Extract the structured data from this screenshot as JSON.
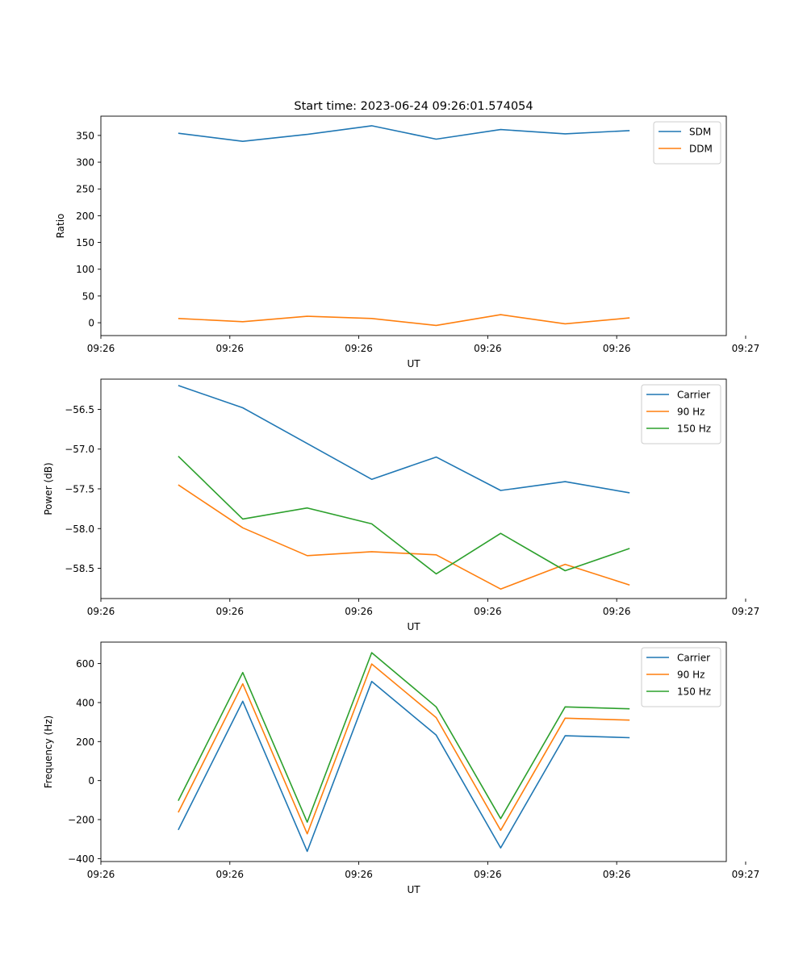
{
  "figure": {
    "title": "Start time: 2023-06-24 09:26:01.574054"
  },
  "chart_data": [
    {
      "type": "line",
      "ylabel": "Ratio",
      "xlabel": "UT",
      "x": [
        0.6,
        1.1,
        1.6,
        2.1,
        2.6,
        3.1,
        3.6,
        4.1
      ],
      "xlim": [
        0.0,
        4.85
      ],
      "xticks": [
        0.0,
        1.0,
        2.0,
        3.0,
        4.0,
        5.0
      ],
      "xtick_labels": [
        "09:26",
        "09:26",
        "09:26",
        "09:26",
        "09:26",
        "09:27"
      ],
      "ylim": [
        -24,
        386
      ],
      "yticks": [
        0,
        50,
        100,
        150,
        200,
        250,
        300,
        350
      ],
      "ytick_labels": [
        "0",
        "50",
        "100",
        "150",
        "200",
        "250",
        "300",
        "350"
      ],
      "legend": "top-right",
      "series": [
        {
          "name": "SDM",
          "color": "#1f77b4",
          "values": [
            354,
            339,
            352,
            368,
            343,
            361,
            353,
            359
          ]
        },
        {
          "name": "DDM",
          "color": "#ff7f0e",
          "values": [
            8,
            2,
            12,
            8,
            -5,
            15,
            -2,
            9
          ]
        }
      ]
    },
    {
      "type": "line",
      "ylabel": "Power (dB)",
      "xlabel": "UT",
      "x": [
        0.6,
        1.1,
        1.6,
        2.1,
        2.6,
        3.1,
        3.6,
        4.1
      ],
      "xlim": [
        0.0,
        4.85
      ],
      "xticks": [
        0.0,
        1.0,
        2.0,
        3.0,
        4.0,
        5.0
      ],
      "xtick_labels": [
        "09:26",
        "09:26",
        "09:26",
        "09:26",
        "09:26",
        "09:27"
      ],
      "ylim": [
        -58.88,
        -56.12
      ],
      "yticks": [
        -58.5,
        -58.0,
        -57.5,
        -57.0,
        -56.5
      ],
      "ytick_labels": [
        "−58.5",
        "−58.0",
        "−57.5",
        "−57.0",
        "−56.5"
      ],
      "legend": "top-right",
      "series": [
        {
          "name": "Carrier",
          "color": "#1f77b4",
          "values": [
            -56.2,
            -56.48,
            -56.93,
            -57.38,
            -57.1,
            -57.52,
            -57.41,
            -57.55
          ]
        },
        {
          "name": "90 Hz",
          "color": "#ff7f0e",
          "values": [
            -57.45,
            -57.99,
            -58.34,
            -58.29,
            -58.33,
            -58.76,
            -58.45,
            -58.71
          ]
        },
        {
          "name": "150 Hz",
          "color": "#2ca02c",
          "values": [
            -57.09,
            -57.88,
            -57.74,
            -57.94,
            -58.57,
            -58.06,
            -58.53,
            -58.25
          ]
        }
      ]
    },
    {
      "type": "line",
      "ylabel": "Frequency (Hz)",
      "xlabel": "UT",
      "x": [
        0.6,
        1.1,
        1.6,
        2.1,
        2.6,
        3.1,
        3.6,
        4.1
      ],
      "xlim": [
        0.0,
        4.85
      ],
      "xticks": [
        0.0,
        1.0,
        2.0,
        3.0,
        4.0,
        5.0
      ],
      "xtick_labels": [
        "09:26",
        "09:26",
        "09:26",
        "09:26",
        "09:26",
        "09:27"
      ],
      "ylim": [
        -415,
        710
      ],
      "yticks": [
        -400,
        -200,
        0,
        200,
        400,
        600
      ],
      "ytick_labels": [
        "−400",
        "−200",
        "0",
        "200",
        "400",
        "600"
      ],
      "legend": "top-right",
      "series": [
        {
          "name": "Carrier",
          "color": "#1f77b4",
          "values": [
            -253,
            407,
            -363,
            508,
            233,
            -345,
            230,
            220
          ]
        },
        {
          "name": "90 Hz",
          "color": "#ff7f0e",
          "values": [
            -163,
            496,
            -273,
            598,
            323,
            -255,
            320,
            310
          ]
        },
        {
          "name": "150 Hz",
          "color": "#2ca02c",
          "values": [
            -103,
            554,
            -213,
            656,
            378,
            -195,
            378,
            368
          ]
        }
      ]
    }
  ]
}
